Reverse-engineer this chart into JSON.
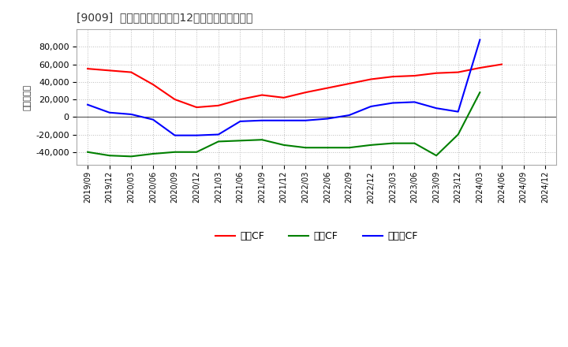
{
  "title": "[9009]  キャッシュフローの12か月移動合計の推移",
  "ylabel": "（百万円）",
  "background_color": "#ffffff",
  "plot_bg_color": "#ffffff",
  "grid_color": "#bbbbbb",
  "x_labels": [
    "2019/09",
    "2019/12",
    "2020/03",
    "2020/06",
    "2020/09",
    "2020/12",
    "2021/03",
    "2021/06",
    "2021/09",
    "2021/12",
    "2022/03",
    "2022/06",
    "2022/09",
    "2022/12",
    "2023/03",
    "2023/06",
    "2023/09",
    "2023/12",
    "2024/03",
    "2024/06",
    "2024/09",
    "2024/12"
  ],
  "operating_cf": [
    55000,
    53000,
    51000,
    37000,
    20000,
    11000,
    13000,
    20000,
    25000,
    22000,
    28000,
    33000,
    38000,
    43000,
    46000,
    47000,
    50000,
    51000,
    56000,
    60000,
    null,
    null
  ],
  "investing_cf": [
    -40000,
    -44000,
    -45000,
    -42000,
    -40000,
    -40000,
    -28000,
    -27000,
    -26000,
    -32000,
    -35000,
    -35000,
    -35000,
    -32000,
    -30000,
    -30000,
    -44000,
    -20000,
    28000,
    null,
    null,
    null
  ],
  "free_cf": [
    14000,
    5000,
    3000,
    -3000,
    -21000,
    -21000,
    -20000,
    -5000,
    -4000,
    -4000,
    -4000,
    -2000,
    2000,
    12000,
    16000,
    17000,
    10000,
    6000,
    88000,
    null,
    null,
    null
  ],
  "operating_color": "#ff0000",
  "investing_color": "#008000",
  "free_color": "#0000ff",
  "ylim": [
    -55000,
    100000
  ],
  "yticks": [
    -40000,
    -20000,
    0,
    20000,
    40000,
    60000,
    80000
  ],
  "legend_labels": [
    "営業CF",
    "投資CF",
    "フリーCF"
  ]
}
